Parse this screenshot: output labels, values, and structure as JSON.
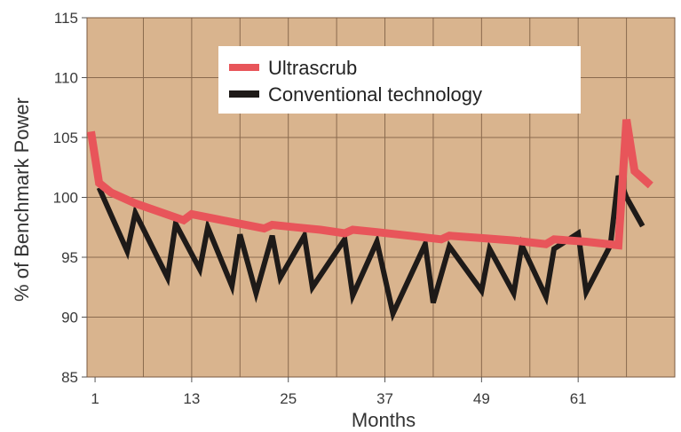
{
  "chart_data": {
    "type": "line",
    "title": "",
    "xlabel": "Months",
    "ylabel": "% of Benchmark Power",
    "xlim": [
      0,
      73
    ],
    "ylim": [
      85,
      115
    ],
    "x_ticks": [
      1,
      13,
      25,
      37,
      49,
      61
    ],
    "y_ticks": [
      85,
      90,
      95,
      100,
      105,
      110,
      115
    ],
    "grid": true,
    "legend_position": "top-center",
    "plot_background": "#d9b48e",
    "grid_color": "#8a6a4e",
    "series": [
      {
        "name": "Ultrascrub",
        "color": "#e8555a",
        "x": [
          0.5,
          1.5,
          3,
          6,
          9,
          12,
          13,
          16,
          19,
          22,
          23,
          26,
          29,
          32,
          33,
          36,
          40,
          44,
          45,
          49,
          53,
          57,
          58,
          62,
          66,
          67,
          68,
          70
        ],
        "y": [
          105.5,
          101.2,
          100.4,
          99.5,
          98.8,
          98.1,
          98.6,
          98.2,
          97.8,
          97.4,
          97.7,
          97.5,
          97.3,
          97.0,
          97.3,
          97.1,
          96.8,
          96.5,
          96.8,
          96.6,
          96.4,
          96.1,
          96.5,
          96.3,
          96.0,
          106.5,
          102.2,
          101.0
        ]
      },
      {
        "name": "Conventional technology",
        "color": "#1e1a18",
        "x": [
          1.5,
          5,
          6,
          10,
          11,
          14,
          15,
          18,
          19,
          21,
          23,
          24,
          27,
          28,
          32,
          33,
          36,
          38,
          42,
          43,
          45,
          49,
          50,
          53,
          54,
          57,
          58,
          61,
          62,
          65,
          66,
          67,
          69
        ],
        "y": [
          100.8,
          95.5,
          98.7,
          93.3,
          97.8,
          94.0,
          97.5,
          92.6,
          96.9,
          92.0,
          96.8,
          93.3,
          96.8,
          92.5,
          96.5,
          91.8,
          96.3,
          90.3,
          96.1,
          91.2,
          95.9,
          92.2,
          95.7,
          92.0,
          96.0,
          91.7,
          95.7,
          97.0,
          92.1,
          96.0,
          101.8,
          100.0,
          97.6
        ]
      }
    ]
  }
}
